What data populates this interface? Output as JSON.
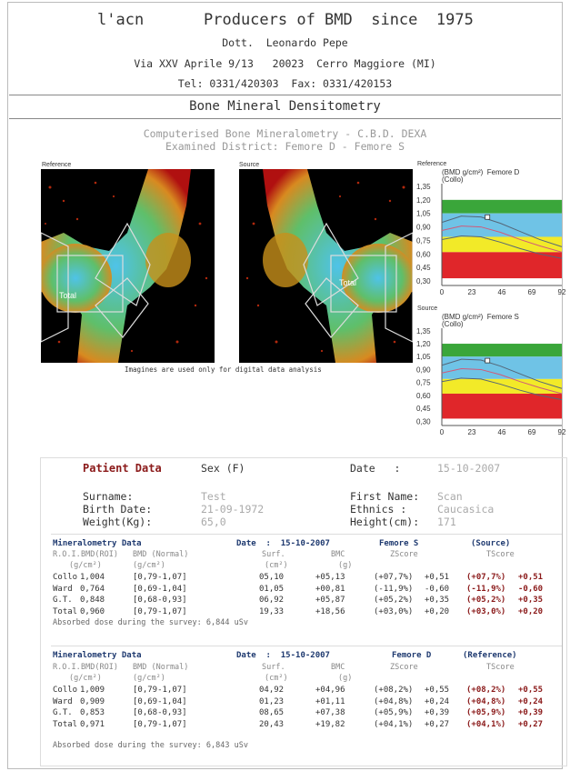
{
  "header": {
    "line1_left": "l'acn",
    "line1_right": "Producers of BMD  since  1975",
    "doctor": "Dott.  Leonardo Pepe",
    "address": "Via XXV Aprile 9/13   20023  Cerro Maggiore (MI)",
    "contacts": "Tel: 0331/420303  Fax: 0331/420153"
  },
  "section_title": "Bone Mineral Densitometry",
  "exam": {
    "line1": "Computerised Bone Mineralometry - C.B.D. DEXA",
    "line2": "Examined District: Femore D - Femore S"
  },
  "images": {
    "reference_label": "Reference",
    "source_label": "Source",
    "total_label": "Total",
    "caption": "Imagines are used only for digital data analysis"
  },
  "charts_text": {
    "reference": {
      "corner_label": "Reference",
      "title": "(BMD g/cm²)  Femore D",
      "subtitle": "(Collo)"
    },
    "source": {
      "corner_label": "Source",
      "title": "(BMD g/cm²)  Femore S",
      "subtitle": "(Collo)"
    }
  },
  "chart_data": [
    {
      "type": "line",
      "title": "(BMD g/cm²)  Femore D",
      "subtitle": "(Collo)",
      "x_ticks": [
        "0",
        "23",
        "46",
        "69",
        "92"
      ],
      "y_ticks": [
        "1,35",
        "1,20",
        "1,05",
        "0,90",
        "0,75",
        "0,60",
        "0,45",
        "0,30"
      ],
      "xlim": [
        0,
        92
      ],
      "ylim": [
        0.25,
        1.38
      ],
      "bands": [
        {
          "from": 1.05,
          "to": 1.2,
          "color": "#3aa63a"
        },
        {
          "from": 0.79,
          "to": 1.05,
          "color": "#6fc3e6"
        },
        {
          "from": 0.62,
          "to": 0.79,
          "color": "#f2ea28"
        },
        {
          "from": 0.33,
          "to": 0.62,
          "color": "#e0262a"
        }
      ],
      "curves": [
        {
          "color": "#556677",
          "x": [
            0,
            15,
            30,
            45,
            60,
            75,
            92
          ],
          "y": [
            0.95,
            1.02,
            1.01,
            0.94,
            0.85,
            0.76,
            0.68
          ]
        },
        {
          "color": "#d05a7a",
          "x": [
            0,
            15,
            30,
            45,
            60,
            75,
            92
          ],
          "y": [
            0.86,
            0.91,
            0.9,
            0.84,
            0.76,
            0.69,
            0.62
          ]
        },
        {
          "color": "#556677",
          "x": [
            0,
            15,
            30,
            45,
            60,
            75,
            92
          ],
          "y": [
            0.76,
            0.8,
            0.79,
            0.73,
            0.66,
            0.6,
            0.55
          ]
        }
      ],
      "marker": {
        "x": 35,
        "y": 1.009
      }
    },
    {
      "type": "line",
      "title": "(BMD g/cm²)  Femore S",
      "subtitle": "(Collo)",
      "x_ticks": [
        "0",
        "23",
        "46",
        "69",
        "92"
      ],
      "y_ticks": [
        "1,35",
        "1,20",
        "1,05",
        "0,90",
        "0,75",
        "0,60",
        "0,45",
        "0,30"
      ],
      "xlim": [
        0,
        92
      ],
      "ylim": [
        0.25,
        1.38
      ],
      "bands": [
        {
          "from": 1.05,
          "to": 1.2,
          "color": "#3aa63a"
        },
        {
          "from": 0.79,
          "to": 1.05,
          "color": "#6fc3e6"
        },
        {
          "from": 0.62,
          "to": 0.79,
          "color": "#f2ea28"
        },
        {
          "from": 0.33,
          "to": 0.62,
          "color": "#e0262a"
        }
      ],
      "curves": [
        {
          "color": "#556677",
          "x": [
            0,
            15,
            30,
            45,
            60,
            75,
            92
          ],
          "y": [
            0.95,
            1.02,
            1.01,
            0.94,
            0.85,
            0.76,
            0.68
          ]
        },
        {
          "color": "#d05a7a",
          "x": [
            0,
            15,
            30,
            45,
            60,
            75,
            92
          ],
          "y": [
            0.86,
            0.91,
            0.9,
            0.84,
            0.76,
            0.69,
            0.62
          ]
        },
        {
          "color": "#556677",
          "x": [
            0,
            15,
            30,
            45,
            60,
            75,
            92
          ],
          "y": [
            0.76,
            0.8,
            0.79,
            0.73,
            0.66,
            0.6,
            0.55
          ]
        }
      ],
      "marker": {
        "x": 35,
        "y": 1.004
      }
    }
  ],
  "patient": {
    "heading": "Patient Data",
    "sex": "Sex (F)",
    "date_label": "Date   :",
    "date_value": "15-10-2007",
    "surname_label": "Surname:",
    "surname_value": "Test",
    "birth_label": "Birth Date:",
    "birth_value": "21-09-1972",
    "weight_label": "Weight(Kg):",
    "weight_value": "65,0",
    "first_label": "First Name:",
    "first_value": "Scan",
    "ethnics_label": "Ethnics :",
    "ethnics_value": "Caucasica",
    "height_label": "Height(cm):",
    "height_value": "171"
  },
  "tables": [
    {
      "title": "Mineralometry Data",
      "date": "Date  :  15-10-2007",
      "site": "Femore S",
      "side": "(Source)",
      "headers": [
        "R.O.I.",
        "BMD(ROI)",
        "BMD (Normal)",
        "Surf.",
        "BMC",
        "ZScore",
        "TScore"
      ],
      "units": [
        "(g/cm²)",
        "(g/cm²)",
        "(cm²)",
        "(g)"
      ],
      "rows": [
        {
          "roi": "Collo",
          "bmd": "1,004",
          "normal": "[0,79-1,07]",
          "surf": "05,10",
          "bmc": "+05,13",
          "zpct": "(+07,7%)",
          "z": "+0,51",
          "tpct": "(+07,7%)",
          "t": "+0,51"
        },
        {
          "roi": "Ward",
          "bmd": "0,764",
          "normal": "[0,69-1,04]",
          "surf": "01,05",
          "bmc": "+00,81",
          "zpct": "(-11,9%)",
          "z": "-0,60",
          "tpct": "(-11,9%)",
          "t": "-0,60"
        },
        {
          "roi": "G.T.",
          "bmd": "0,848",
          "normal": "[0,68-0,93]",
          "surf": "06,92",
          "bmc": "+05,87",
          "zpct": "(+05,2%)",
          "z": "+0,35",
          "tpct": "(+05,2%)",
          "t": "+0,35"
        },
        {
          "roi": "Total",
          "bmd": "0,960",
          "normal": "[0,79-1,07]",
          "surf": "19,33",
          "bmc": "+18,56",
          "zpct": "(+03,0%)",
          "z": "+0,20",
          "tpct": "(+03,0%)",
          "t": "+0,20"
        }
      ],
      "dose": "Absorbed dose during the survey: 6,844 uSv"
    },
    {
      "title": "Mineralometry Data",
      "date": "Date  :  15-10-2007",
      "site": "Femore D",
      "side": "(Reference)",
      "headers": [
        "R.O.I.",
        "BMD(ROI)",
        "BMD (Normal)",
        "Surf.",
        "BMC",
        "ZScore",
        "TScore"
      ],
      "units": [
        "(g/cm²)",
        "(g/cm²)",
        "(cm²)",
        "(g)"
      ],
      "rows": [
        {
          "roi": "Collo",
          "bmd": "1,009",
          "normal": "[0,79-1,07]",
          "surf": "04,92",
          "bmc": "+04,96",
          "zpct": "(+08,2%)",
          "z": "+0,55",
          "tpct": "(+08,2%)",
          "t": "+0,55"
        },
        {
          "roi": "Ward",
          "bmd": "0,909",
          "normal": "[0,69-1,04]",
          "surf": "01,23",
          "bmc": "+01,11",
          "zpct": "(+04,8%)",
          "z": "+0,24",
          "tpct": "(+04,8%)",
          "t": "+0,24"
        },
        {
          "roi": "G.T.",
          "bmd": "0,853",
          "normal": "[0,68-0,93]",
          "surf": "08,65",
          "bmc": "+07,38",
          "zpct": "(+05,9%)",
          "z": "+0,39",
          "tpct": "(+05,9%)",
          "t": "+0,39"
        },
        {
          "roi": "Total",
          "bmd": "0,971",
          "normal": "[0,79-1,07]",
          "surf": "20,43",
          "bmc": "+19,82",
          "zpct": "(+04,1%)",
          "z": "+0,27",
          "tpct": "(+04,1%)",
          "t": "+0,27"
        }
      ],
      "dose": "Absorbed dose during the survey: 6,843 uSv"
    }
  ]
}
